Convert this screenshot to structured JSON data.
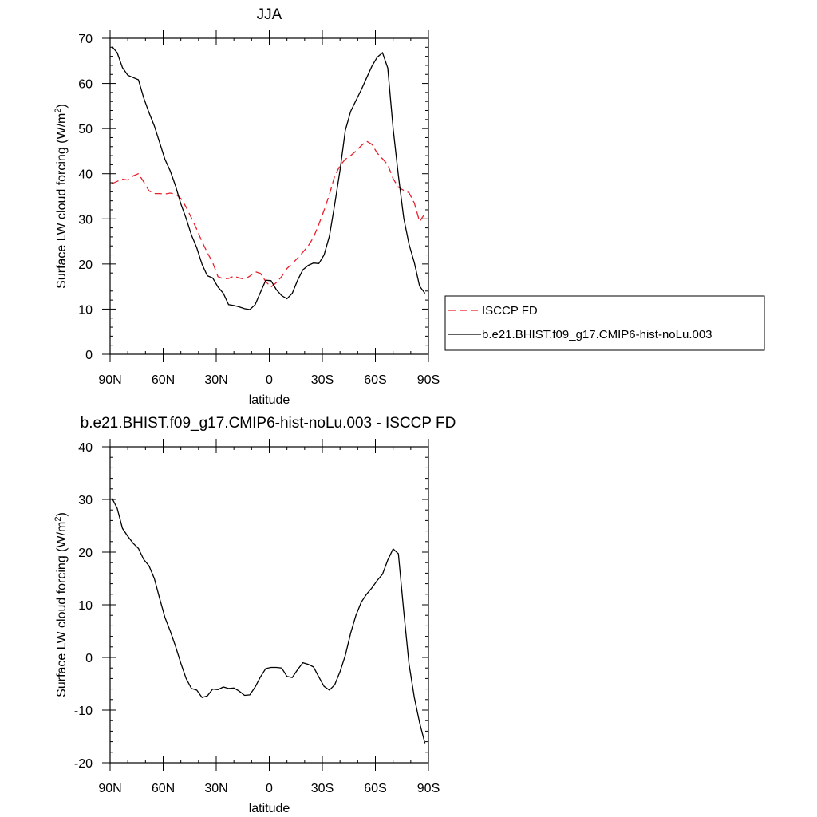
{
  "chart_data": [
    {
      "type": "line",
      "title": "JJA",
      "xlabel": "latitude",
      "ylabel_main": "Surface LW cloud forcing (W/m",
      "ylabel_sup": "2",
      "ylabel_end": ")",
      "xlim": [
        -90,
        90
      ],
      "ylim": [
        0,
        70
      ],
      "x_ticks": [
        -90,
        -60,
        -30,
        0,
        30,
        60,
        90
      ],
      "x_tick_labels": [
        "90N",
        "60N",
        "30N",
        "0",
        "30S",
        "60S",
        "90S"
      ],
      "y_ticks": [
        0,
        10,
        20,
        30,
        40,
        50,
        60,
        70
      ],
      "y_tick_labels": [
        "0",
        "10",
        "20",
        "30",
        "40",
        "50",
        "60",
        "70"
      ],
      "legend_position": "right",
      "series": [
        {
          "name": "ISCCP FD",
          "color": "#e8202a",
          "style": "dashed",
          "x": [
            -89,
            -86,
            -83,
            -80,
            -77,
            -74,
            -71,
            -68,
            -65,
            -62,
            -59,
            -56,
            -53,
            -50,
            -47,
            -44,
            -41,
            -38,
            -35,
            -32,
            -29,
            -26,
            -23,
            -20,
            -17,
            -14,
            -11,
            -8,
            -5,
            -2,
            1,
            4,
            7,
            10,
            13,
            16,
            19,
            22,
            25,
            28,
            31,
            34,
            37,
            40,
            43,
            46,
            49,
            52,
            55,
            58,
            61,
            64,
            67,
            70,
            73,
            76,
            79,
            82,
            85,
            88
          ],
          "values": [
            37.8,
            38.3,
            38.8,
            38.6,
            39.5,
            40.0,
            38.2,
            36.2,
            35.6,
            35.6,
            35.5,
            35.7,
            35.5,
            34.5,
            32.6,
            30.2,
            27.7,
            24.9,
            22.5,
            20.3,
            17.2,
            16.7,
            16.8,
            17.3,
            16.9,
            16.6,
            17.3,
            18.3,
            17.9,
            16.1,
            14.9,
            15.9,
            17.2,
            19.0,
            20.1,
            21.3,
            22.6,
            24.0,
            25.9,
            28.8,
            31.9,
            35.4,
            39.5,
            41.8,
            43.2,
            44.0,
            45.0,
            46.2,
            47.2,
            46.5,
            44.6,
            43.3,
            42.0,
            38.9,
            37.0,
            36.3,
            35.8,
            33.5,
            29.4,
            31.2
          ]
        },
        {
          "name": "b.e21.BHIST.f09_g17.CMIP6-hist-noLu.003",
          "color": "#000000",
          "style": "solid",
          "x": [
            -89,
            -86,
            -83,
            -80,
            -77,
            -74,
            -71,
            -68,
            -65,
            -62,
            -59,
            -56,
            -53,
            -50,
            -47,
            -44,
            -41,
            -38,
            -35,
            -32,
            -29,
            -26,
            -23,
            -20,
            -17,
            -14,
            -11,
            -8,
            -5,
            -2,
            1,
            4,
            7,
            10,
            13,
            16,
            19,
            22,
            25,
            28,
            31,
            34,
            37,
            40,
            43,
            46,
            49,
            52,
            55,
            58,
            61,
            64,
            67,
            70,
            73,
            76,
            79,
            82,
            85,
            88
          ],
          "values": [
            68.2,
            66.8,
            63.5,
            61.8,
            61.3,
            60.8,
            56.8,
            53.5,
            50.6,
            46.9,
            43.2,
            40.6,
            37.3,
            33.3,
            30.1,
            26.4,
            23.6,
            19.9,
            17.4,
            16.9,
            14.9,
            13.5,
            11.0,
            10.8,
            10.5,
            10.1,
            9.9,
            11.0,
            13.7,
            16.4,
            16.3,
            14.3,
            13.0,
            12.3,
            13.5,
            16.4,
            18.7,
            19.7,
            20.2,
            20.1,
            22.0,
            26.2,
            33.2,
            40.8,
            49.6,
            53.8,
            56.2,
            58.6,
            61.2,
            63.8,
            65.8,
            66.8,
            63.4,
            50.0,
            39.6,
            30.2,
            24.4,
            20.3,
            15.1,
            13.5
          ]
        }
      ]
    },
    {
      "type": "line",
      "title": "b.e21.BHIST.f09_g17.CMIP6-hist-noLu.003 - ISCCP FD",
      "xlabel": "latitude",
      "ylabel_main": "Surface LW cloud forcing (W/m",
      "ylabel_sup": "2",
      "ylabel_end": ")",
      "xlim": [
        -90,
        90
      ],
      "ylim": [
        -20,
        40
      ],
      "x_ticks": [
        -90,
        -60,
        -30,
        0,
        30,
        60,
        90
      ],
      "x_tick_labels": [
        "90N",
        "60N",
        "30N",
        "0",
        "30S",
        "60S",
        "90S"
      ],
      "y_ticks": [
        -20,
        -10,
        0,
        10,
        20,
        30,
        40
      ],
      "y_tick_labels": [
        "-20",
        "-10",
        "0",
        "10",
        "20",
        "30",
        "40"
      ],
      "series": [
        {
          "color": "#000000",
          "style": "solid",
          "x": [
            -89,
            -86,
            -83,
            -80,
            -77,
            -74,
            -71,
            -68,
            -65,
            -62,
            -59,
            -56,
            -53,
            -50,
            -47,
            -44,
            -41,
            -38,
            -35,
            -32,
            -29,
            -26,
            -23,
            -20,
            -17,
            -14,
            -11,
            -8,
            -5,
            -2,
            1,
            4,
            7,
            10,
            13,
            16,
            19,
            22,
            25,
            28,
            31,
            34,
            37,
            40,
            43,
            46,
            49,
            52,
            55,
            58,
            61,
            64,
            67,
            70,
            73,
            76,
            79,
            82,
            85,
            88
          ],
          "values": [
            30.3,
            28.3,
            24.5,
            23.0,
            21.7,
            20.7,
            18.6,
            17.4,
            15.0,
            11.2,
            7.6,
            5.0,
            2.1,
            -1.1,
            -4.0,
            -5.9,
            -6.2,
            -7.6,
            -7.3,
            -6.0,
            -6.1,
            -5.6,
            -5.9,
            -5.8,
            -6.4,
            -7.2,
            -7.1,
            -5.6,
            -3.7,
            -2.1,
            -1.9,
            -1.9,
            -2.0,
            -3.6,
            -3.8,
            -2.3,
            -1.0,
            -1.3,
            -1.8,
            -3.7,
            -5.5,
            -6.2,
            -5.2,
            -2.7,
            0.4,
            4.6,
            8.0,
            10.5,
            12.0,
            13.2,
            14.6,
            15.8,
            18.5,
            20.6,
            19.7,
            8.8,
            -1.2,
            -7.6,
            -12.4,
            -16.3
          ]
        }
      ]
    }
  ]
}
